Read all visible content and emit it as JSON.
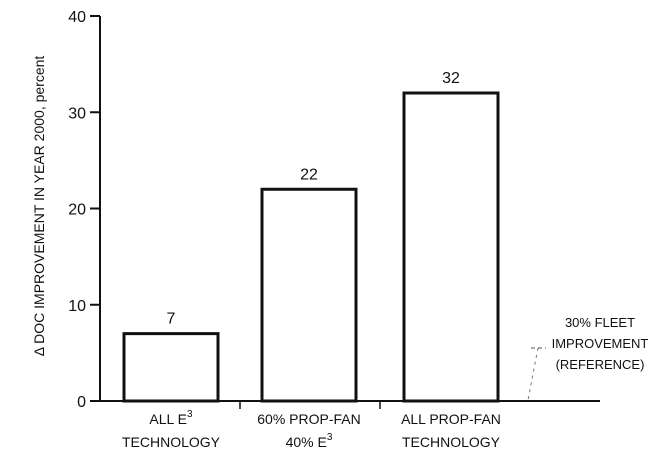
{
  "chart_data": {
    "type": "bar",
    "ylabel": "Δ DOC IMPROVEMENT IN YEAR 2000, percent",
    "xlabel": "",
    "ylim": [
      0,
      40
    ],
    "yticks": [
      0,
      10,
      20,
      30,
      40
    ],
    "grid": false,
    "categories": [
      {
        "line1": "ALL E",
        "line1_sup": "3",
        "line2": "TECHNOLOGY",
        "line2_sup": ""
      },
      {
        "line1": "60% PROP-FAN",
        "line1_sup": "",
        "line2": "40% E",
        "line2_sup": "3"
      },
      {
        "line1": "ALL PROP-FAN",
        "line1_sup": "",
        "line2": "TECHNOLOGY",
        "line2_sup": ""
      }
    ],
    "values": [
      7,
      22,
      32
    ],
    "data_labels": [
      "7",
      "22",
      "32"
    ],
    "reference": {
      "value": 30,
      "lines": [
        "30% FLEET",
        "IMPROVEMENT",
        "(REFERENCE)"
      ]
    }
  }
}
